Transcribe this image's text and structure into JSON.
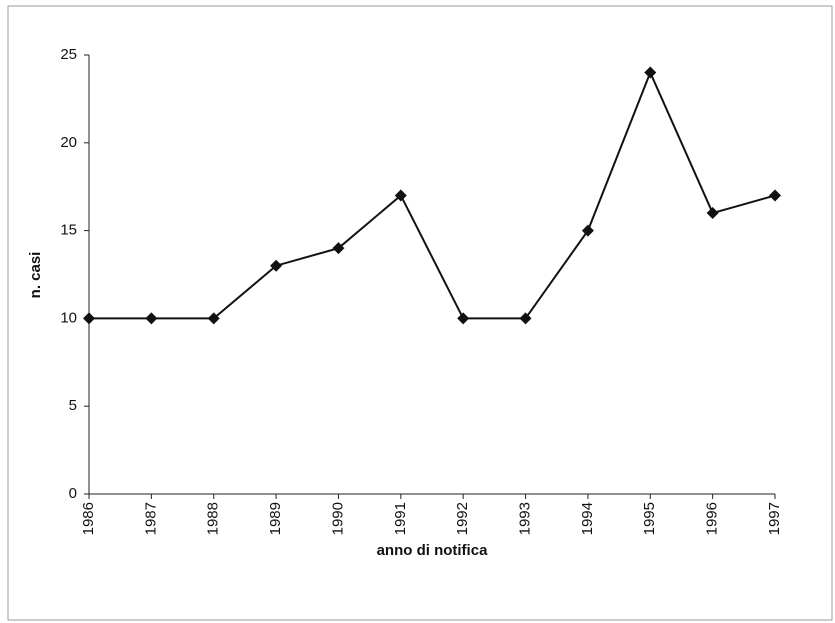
{
  "chart_data": {
    "type": "line",
    "x_label": "anno di notifica",
    "y_label": "n. casi",
    "categories": [
      "1986",
      "1987",
      "1988",
      "1989",
      "1990",
      "1991",
      "1992",
      "1993",
      "1994",
      "1995",
      "1996",
      "1997"
    ],
    "values": [
      10,
      10,
      10,
      13,
      14,
      17,
      10,
      10,
      15,
      24,
      16,
      17
    ],
    "color": "#111111",
    "marker": "diamond",
    "ylim": [
      0,
      25
    ],
    "yticks": [
      0,
      5,
      10,
      15,
      20,
      25
    ],
    "grid": false
  }
}
